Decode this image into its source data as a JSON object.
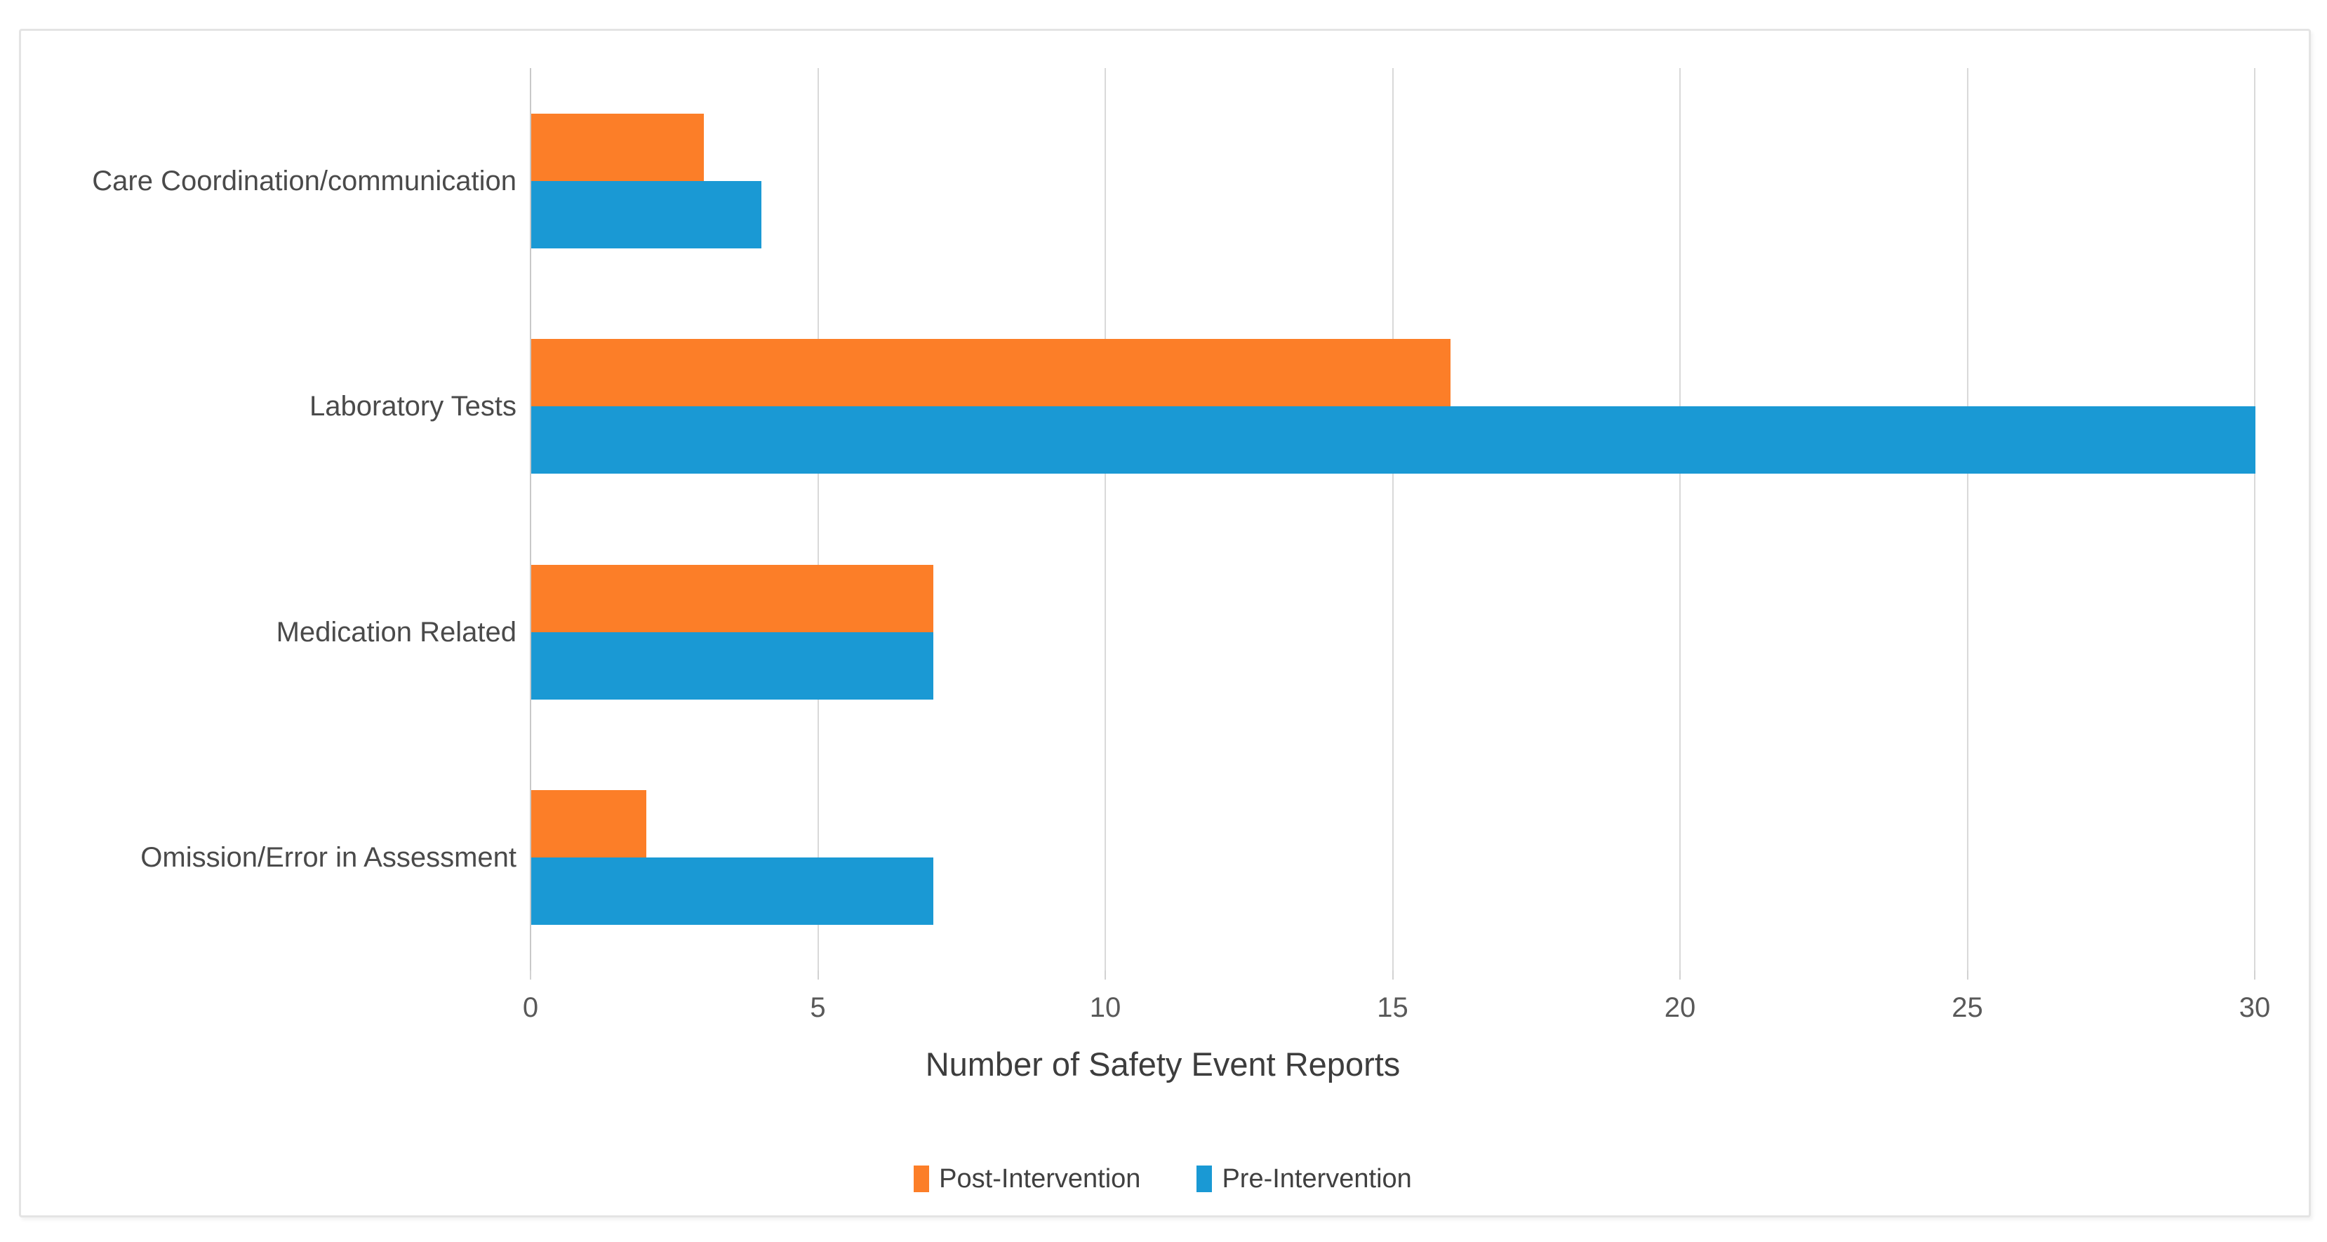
{
  "chart_data": {
    "type": "bar",
    "orientation": "horizontal",
    "title": "",
    "xlabel": "Number of Safety Event Reports",
    "ylabel": "",
    "categories": [
      "Care Coordination/communication",
      "Laboratory Tests",
      "Medication Related",
      "Omission/Error in Assessment"
    ],
    "series": [
      {
        "name": "Post-Intervention",
        "color": "#fc7e28",
        "values": [
          3,
          16,
          7,
          2
        ]
      },
      {
        "name": "Pre-Intervention",
        "color": "#1a99d4",
        "values": [
          4,
          30,
          7,
          7
        ]
      }
    ],
    "xlim": [
      0,
      30
    ],
    "xticks": [
      0,
      5,
      10,
      15,
      20,
      25,
      30
    ],
    "grid": true,
    "legend_position": "bottom"
  },
  "colors": {
    "post_intervention": "#fc7e28",
    "pre_intervention": "#1a99d4",
    "gridline": "#d9d9d9",
    "axis_zero_line": "#c9c9c9",
    "tick_text": "#595959",
    "category_text": "#4a4a4a",
    "axis_title_text": "#3d3d3d",
    "frame_border": "#e4e4e4"
  }
}
